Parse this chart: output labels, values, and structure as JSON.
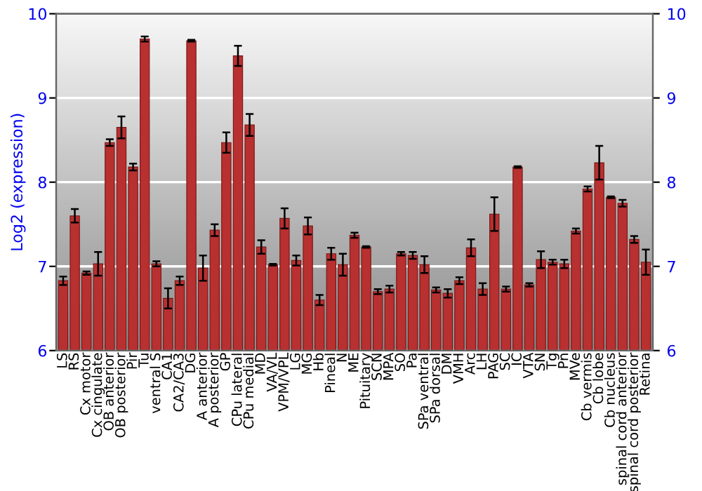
{
  "chart_data": {
    "type": "bar",
    "ylabel": "Log2 (expression)",
    "categories": [
      "LS",
      "RS",
      "Cx motor",
      "Cx cingulate",
      "OB anterior",
      "OB posterior",
      "Pir",
      "Tu",
      "ventral S",
      "CA1",
      "CA2/CA3",
      "DG",
      "A anterior",
      "A posterior",
      "GP",
      "CPu lateral",
      "CPu medial",
      "MD",
      "VA/VL",
      "VPM/VPL",
      "LG",
      "MG",
      "Hb",
      "Pineal",
      "N",
      "ME",
      "Pituitary",
      "SCN",
      "MPA",
      "SO",
      "Pa",
      "SPa ventral",
      "SPa dorsal",
      "DM",
      "VMH",
      "Arc",
      "LH",
      "PAG",
      "SC",
      "IC",
      "VTA",
      "SN",
      "Tg",
      "Pn",
      "MVe",
      "Cb vermis",
      "Cb lobe",
      "Cb nucleus",
      "spinal cord anterior",
      "spinal cord posterior",
      "Retina"
    ],
    "series": [
      {
        "color": "#b83030",
        "values": [
          6.83,
          7.6,
          6.92,
          7.03,
          8.47,
          8.65,
          8.18,
          9.7,
          7.03,
          6.62,
          6.83,
          9.68,
          6.98,
          7.43,
          8.47,
          9.5,
          8.68,
          7.23,
          7.02,
          7.57,
          7.07,
          7.48,
          6.6,
          7.15,
          7.02,
          7.37,
          7.23,
          6.7,
          6.73,
          7.15,
          7.13,
          7.02,
          6.72,
          6.68,
          6.83,
          7.22,
          6.73,
          7.62,
          6.73,
          8.18,
          6.78,
          7.08,
          7.05,
          7.03,
          7.42,
          7.92,
          8.23,
          7.82,
          7.75,
          7.32,
          7.05
        ],
        "errors": [
          0.05,
          0.08,
          0.02,
          0.14,
          0.04,
          0.13,
          0.04,
          0.03,
          0.03,
          0.12,
          0.05,
          0.01,
          0.15,
          0.07,
          0.12,
          0.12,
          0.13,
          0.08,
          0.01,
          0.12,
          0.06,
          0.1,
          0.06,
          0.07,
          0.13,
          0.03,
          0.01,
          0.03,
          0.04,
          0.02,
          0.04,
          0.1,
          0.03,
          0.05,
          0.04,
          0.1,
          0.07,
          0.2,
          0.03,
          0.01,
          0.02,
          0.1,
          0.03,
          0.05,
          0.03,
          0.03,
          0.2,
          0.01,
          0.04,
          0.04,
          0.15
        ]
      }
    ],
    "ylim": [
      6,
      10
    ],
    "yticks": [
      6,
      7,
      8,
      9,
      10
    ],
    "y2lim": [
      6,
      10
    ],
    "y2ticks": [
      6,
      7,
      8,
      9,
      10
    ],
    "grid": "y"
  }
}
